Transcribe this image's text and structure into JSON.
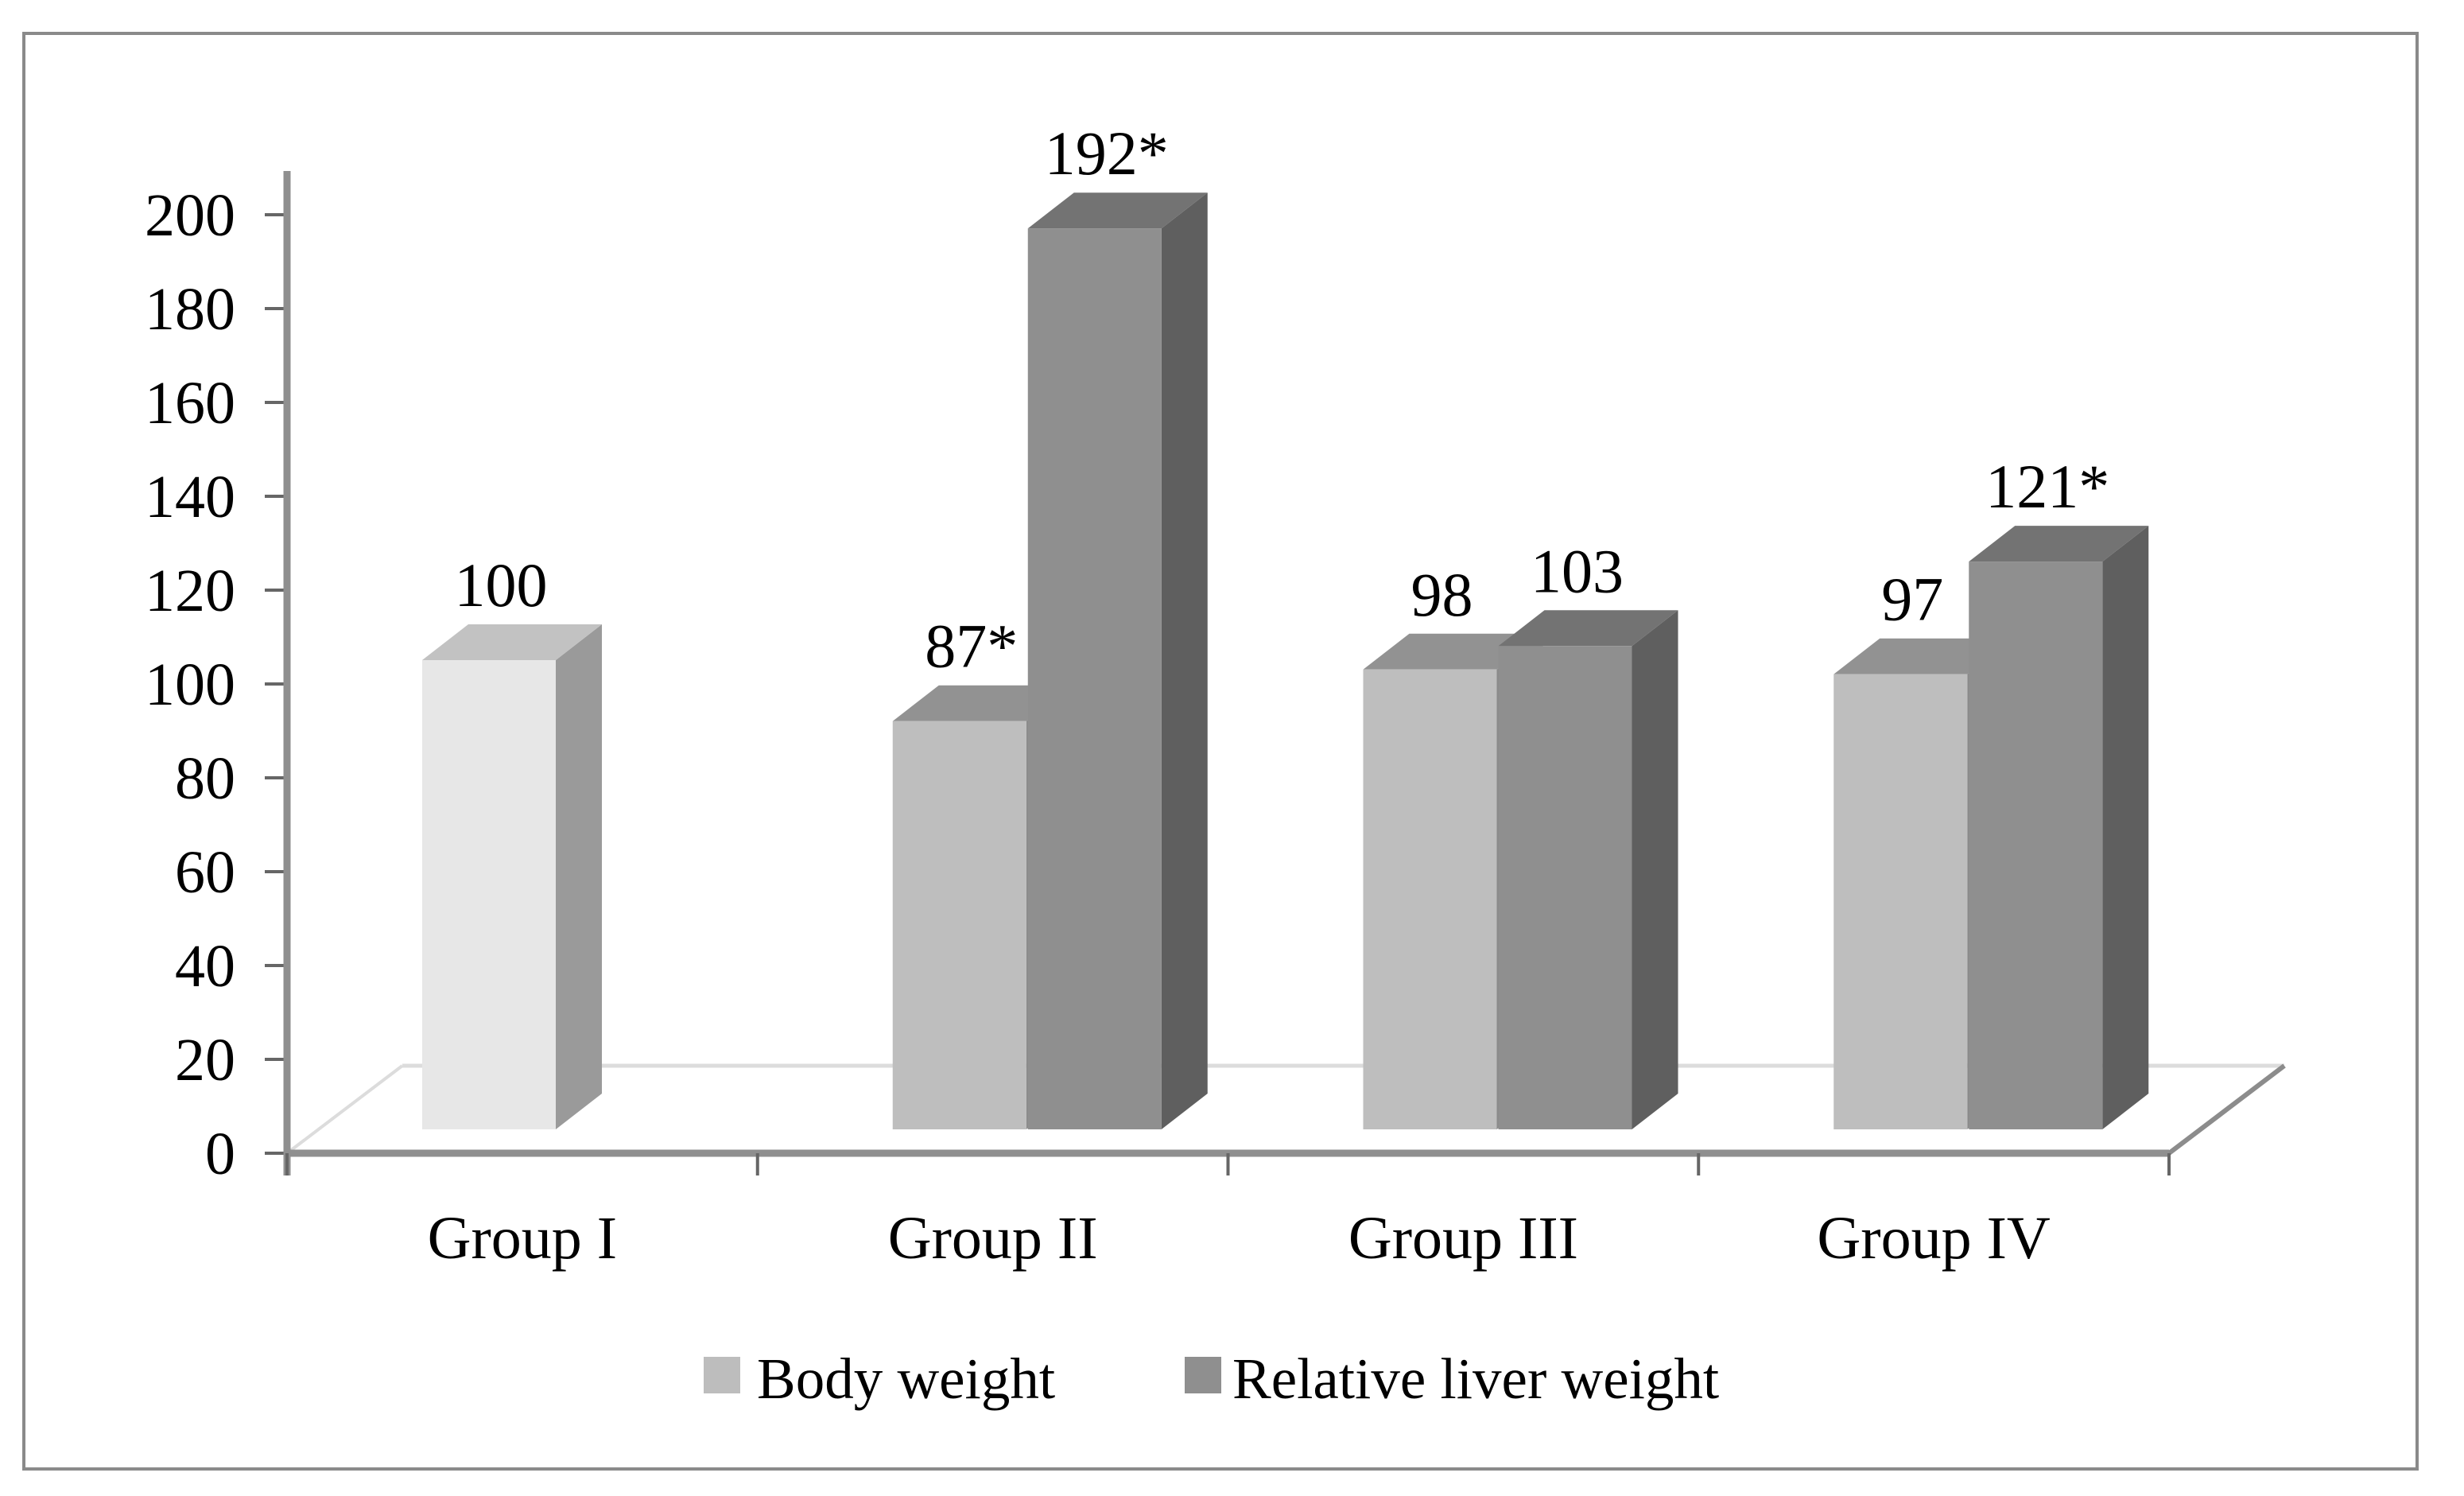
{
  "figure": {
    "background": "#ffffff",
    "border_color": "#8a8a8a"
  },
  "chart_data": {
    "type": "bar",
    "projection": "3d-clustered-column",
    "title": "",
    "xlabel": "",
    "ylabel": "",
    "categories": [
      "Group I",
      "Group II",
      "Group III",
      "Group IV"
    ],
    "series": [
      {
        "name": "Body weight",
        "values": [
          100,
          87,
          98,
          97
        ],
        "data_labels": [
          "100",
          "87*",
          "98",
          "97"
        ],
        "swatch_color": "#bdbdbd",
        "bar_colors": [
          {
            "front": "#e7e7e7",
            "top": "#c2c2c2",
            "side": "#9a9a9a"
          },
          {
            "front": "#bebebe",
            "top": "#929292",
            "side": "#8a8a8a"
          },
          {
            "front": "#bebebe",
            "top": "#929292",
            "side": "#8a8a8a"
          },
          {
            "front": "#bebebe",
            "top": "#929292",
            "side": "#8a8a8a"
          }
        ]
      },
      {
        "name": "Relative liver weight",
        "values": [
          null,
          192,
          103,
          121
        ],
        "data_labels": [
          "",
          "192*",
          "103",
          "121*"
        ],
        "swatch_color": "#8f8f8f",
        "bar_colors": [
          null,
          {
            "front": "#8f8f8f",
            "top": "#737373",
            "side": "#5f5f5f"
          },
          {
            "front": "#8f8f8f",
            "top": "#737373",
            "side": "#5f5f5f"
          },
          {
            "front": "#8f8f8f",
            "top": "#737373",
            "side": "#5f5f5f"
          }
        ]
      }
    ],
    "ylim": [
      0,
      200
    ],
    "ytick_step": 20,
    "yticks": [
      "0",
      "20",
      "40",
      "60",
      "80",
      "100",
      "120",
      "140",
      "160",
      "180",
      "200"
    ],
    "grid": false,
    "legend_position": "bottom",
    "axis_color": "#8f8f8f",
    "tick_color": "#666666",
    "floor_light_edge_color": "#dcdcdc",
    "floor_dark_edge_color": "#8c8c8c",
    "text_color": "#000000"
  }
}
